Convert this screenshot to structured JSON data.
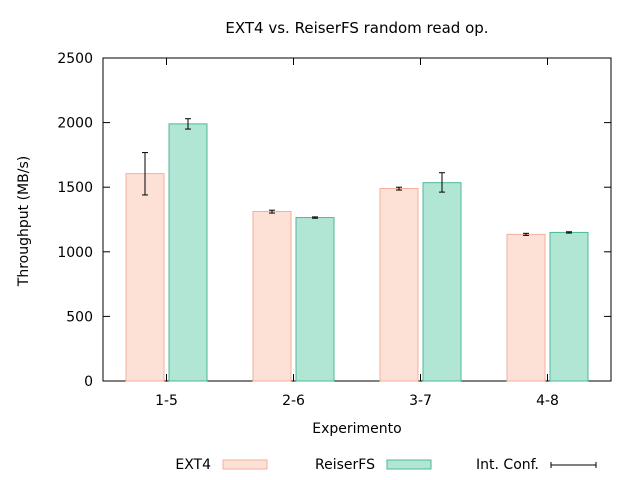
{
  "chart_data": {
    "type": "bar",
    "title": "EXT4 vs. ReiserFS random read op.",
    "xlabel": "Experimento",
    "ylabel": "Throughput (MB/s)",
    "categories": [
      "1-5",
      "2-6",
      "3-7",
      "4-8"
    ],
    "ylim": [
      0,
      2500
    ],
    "yticks": [
      "0",
      "500",
      "1000",
      "1500",
      "2000",
      "2500"
    ],
    "series": [
      {
        "name": "EXT4",
        "color": "#fde0d6",
        "stroke": "#f2b09e",
        "values": [
          1605,
          1312,
          1490,
          1135
        ],
        "error_low": [
          1440,
          1300,
          1478,
          1127
        ],
        "error_high": [
          1768,
          1322,
          1500,
          1143
        ]
      },
      {
        "name": "ReiserFS",
        "color": "#b2e6d4",
        "stroke": "#4cb896",
        "values": [
          1990,
          1265,
          1535,
          1150
        ],
        "error_low": [
          1950,
          1260,
          1462,
          1145
        ],
        "error_high": [
          2030,
          1270,
          1612,
          1155
        ]
      }
    ],
    "error_bar_legend": "Int. Conf.",
    "grid": false,
    "legend_position": "bottom"
  }
}
